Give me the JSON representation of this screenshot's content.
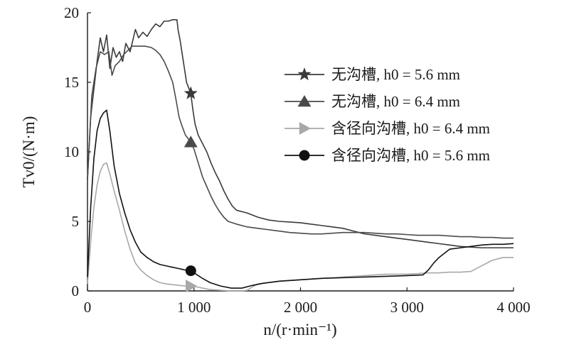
{
  "chart_data": {
    "type": "line",
    "xlabel": "n/(r·min⁻¹)",
    "ylabel": "Tv0/(N·m)",
    "xlim": [
      0,
      4000
    ],
    "ylim": [
      0,
      20
    ],
    "x_ticks": [
      0,
      1000,
      2000,
      3000,
      4000
    ],
    "x_tick_labels": [
      "0",
      "1 000",
      "2 000",
      "3 000",
      "4 000"
    ],
    "y_ticks": [
      0,
      5,
      10,
      15,
      20
    ],
    "y_tick_labels": [
      "0",
      "5",
      "10",
      "15",
      "20"
    ],
    "grid": false,
    "legend_position": "right",
    "series": [
      {
        "name": "无沟槽, h0 = 5.6 mm",
        "color": "#3a3a3a",
        "marker": "star",
        "marker_at": [
          970,
          14.2
        ],
        "points": [
          [
            0,
            8
          ],
          [
            30,
            12.5
          ],
          [
            60,
            14.5
          ],
          [
            90,
            16.5
          ],
          [
            120,
            18.2
          ],
          [
            150,
            17.2
          ],
          [
            180,
            18.4
          ],
          [
            210,
            16
          ],
          [
            240,
            17.5
          ],
          [
            270,
            16.8
          ],
          [
            300,
            17.2
          ],
          [
            330,
            16.5
          ],
          [
            360,
            17.8
          ],
          [
            400,
            17.2
          ],
          [
            450,
            18.8
          ],
          [
            480,
            18.2
          ],
          [
            520,
            18.6
          ],
          [
            560,
            18.3
          ],
          [
            600,
            18.8
          ],
          [
            640,
            19.2
          ],
          [
            680,
            19.0
          ],
          [
            720,
            19.4
          ],
          [
            760,
            19.4
          ],
          [
            800,
            19.5
          ],
          [
            820,
            19.5
          ],
          [
            840,
            19.5
          ],
          [
            850,
            18.8
          ],
          [
            870,
            18.0
          ],
          [
            890,
            17.0
          ],
          [
            910,
            16.0
          ],
          [
            930,
            15.0
          ],
          [
            950,
            14.6
          ],
          [
            970,
            14.2
          ],
          [
            990,
            13.0
          ],
          [
            1010,
            12.0
          ],
          [
            1040,
            11.2
          ],
          [
            1080,
            10.6
          ],
          [
            1120,
            10.0
          ],
          [
            1160,
            9.2
          ],
          [
            1200,
            8.5
          ],
          [
            1240,
            7.9
          ],
          [
            1280,
            7.2
          ],
          [
            1320,
            6.6
          ],
          [
            1360,
            6.1
          ],
          [
            1400,
            5.8
          ],
          [
            1500,
            5.6
          ],
          [
            1600,
            5.3
          ],
          [
            1700,
            5.1
          ],
          [
            1800,
            5.0
          ],
          [
            1900,
            4.95
          ],
          [
            2000,
            4.9
          ],
          [
            2100,
            4.8
          ],
          [
            2200,
            4.7
          ],
          [
            2300,
            4.6
          ],
          [
            2400,
            4.5
          ],
          [
            2500,
            4.3
          ],
          [
            2600,
            4.1
          ],
          [
            2700,
            4.0
          ],
          [
            2800,
            3.9
          ],
          [
            2900,
            3.8
          ],
          [
            3000,
            3.7
          ],
          [
            3100,
            3.6
          ],
          [
            3200,
            3.5
          ],
          [
            3300,
            3.4
          ],
          [
            3400,
            3.3
          ],
          [
            3500,
            3.2
          ],
          [
            3600,
            3.15
          ],
          [
            3700,
            3.1
          ],
          [
            3800,
            3.1
          ],
          [
            3900,
            3.1
          ],
          [
            4000,
            3.1
          ]
        ]
      },
      {
        "name": "无沟槽, h0 = 6.4 mm",
        "color": "#4a4a4a",
        "marker": "triangle",
        "marker_at": [
          970,
          10.7
        ],
        "points": [
          [
            0,
            8
          ],
          [
            40,
            14
          ],
          [
            80,
            16
          ],
          [
            120,
            17.2
          ],
          [
            160,
            17.0
          ],
          [
            200,
            17.2
          ],
          [
            230,
            15.5
          ],
          [
            260,
            16.2
          ],
          [
            300,
            16.5
          ],
          [
            340,
            17.0
          ],
          [
            380,
            17.3
          ],
          [
            420,
            17.6
          ],
          [
            480,
            17.6
          ],
          [
            540,
            17.6
          ],
          [
            600,
            17.5
          ],
          [
            640,
            17.3
          ],
          [
            680,
            17.0
          ],
          [
            720,
            16.5
          ],
          [
            760,
            15.8
          ],
          [
            800,
            15.0
          ],
          [
            830,
            13.8
          ],
          [
            860,
            12.5
          ],
          [
            890,
            11.8
          ],
          [
            920,
            11.2
          ],
          [
            950,
            10.9
          ],
          [
            970,
            10.7
          ],
          [
            1000,
            10.2
          ],
          [
            1040,
            9.2
          ],
          [
            1080,
            8.2
          ],
          [
            1120,
            7.5
          ],
          [
            1160,
            6.8
          ],
          [
            1200,
            6.2
          ],
          [
            1240,
            5.7
          ],
          [
            1280,
            5.3
          ],
          [
            1320,
            5.0
          ],
          [
            1400,
            4.8
          ],
          [
            1500,
            4.6
          ],
          [
            1600,
            4.5
          ],
          [
            1700,
            4.4
          ],
          [
            1800,
            4.3
          ],
          [
            1900,
            4.2
          ],
          [
            2000,
            4.15
          ],
          [
            2100,
            4.1
          ],
          [
            2200,
            4.1
          ],
          [
            2300,
            4.15
          ],
          [
            2400,
            4.2
          ],
          [
            2500,
            4.2
          ],
          [
            2600,
            4.2
          ],
          [
            2700,
            4.15
          ],
          [
            2800,
            4.1
          ],
          [
            2900,
            4.1
          ],
          [
            3000,
            4.05
          ],
          [
            3100,
            4.0
          ],
          [
            3200,
            4.0
          ],
          [
            3300,
            4.0
          ],
          [
            3400,
            3.95
          ],
          [
            3500,
            3.9
          ],
          [
            3600,
            3.9
          ],
          [
            3700,
            3.85
          ],
          [
            3800,
            3.85
          ],
          [
            3900,
            3.8
          ],
          [
            4000,
            3.8
          ]
        ]
      },
      {
        "name": "含径向沟槽, h0 = 6.4 mm",
        "color": "#a8a8a8",
        "marker": "triangle-right",
        "marker_at": [
          970,
          0.35
        ],
        "points": [
          [
            0,
            0.5
          ],
          [
            30,
            3.5
          ],
          [
            60,
            6.0
          ],
          [
            90,
            7.6
          ],
          [
            120,
            8.6
          ],
          [
            150,
            9.1
          ],
          [
            180,
            9.2
          ],
          [
            210,
            8.4
          ],
          [
            250,
            7.2
          ],
          [
            300,
            5.8
          ],
          [
            350,
            4.3
          ],
          [
            400,
            3.0
          ],
          [
            450,
            2.0
          ],
          [
            500,
            1.5
          ],
          [
            560,
            1.1
          ],
          [
            620,
            0.8
          ],
          [
            680,
            0.6
          ],
          [
            740,
            0.5
          ],
          [
            800,
            0.45
          ],
          [
            860,
            0.4
          ],
          [
            920,
            0.35
          ],
          [
            970,
            0.35
          ],
          [
            1020,
            0.3
          ],
          [
            1080,
            0.2
          ],
          [
            1150,
            0.1
          ],
          [
            1250,
            0.05
          ],
          [
            1350,
            0.0
          ],
          [
            1450,
            0.0
          ],
          [
            1500,
            0.05
          ],
          [
            1550,
            0.3
          ],
          [
            1600,
            0.5
          ],
          [
            1700,
            0.6
          ],
          [
            1800,
            0.7
          ],
          [
            1900,
            0.75
          ],
          [
            2000,
            0.8
          ],
          [
            2100,
            0.85
          ],
          [
            2200,
            0.9
          ],
          [
            2300,
            0.95
          ],
          [
            2400,
            1.0
          ],
          [
            2500,
            1.05
          ],
          [
            2600,
            1.1
          ],
          [
            2700,
            1.15
          ],
          [
            2800,
            1.2
          ],
          [
            2900,
            1.2
          ],
          [
            3000,
            1.2
          ],
          [
            3100,
            1.25
          ],
          [
            3200,
            1.3
          ],
          [
            3300,
            1.3
          ],
          [
            3400,
            1.35
          ],
          [
            3500,
            1.35
          ],
          [
            3600,
            1.4
          ],
          [
            3700,
            1.8
          ],
          [
            3800,
            2.2
          ],
          [
            3900,
            2.4
          ],
          [
            4000,
            2.4
          ]
        ]
      },
      {
        "name": "含径向沟槽, h0 = 5.6 mm",
        "color": "#111111",
        "marker": "circle",
        "marker_at": [
          970,
          1.45
        ],
        "points": [
          [
            0,
            1.0
          ],
          [
            30,
            6.0
          ],
          [
            60,
            9.5
          ],
          [
            90,
            11.5
          ],
          [
            120,
            12.4
          ],
          [
            150,
            12.8
          ],
          [
            180,
            13.0
          ],
          [
            210,
            11.5
          ],
          [
            250,
            9.0
          ],
          [
            300,
            7.0
          ],
          [
            350,
            5.6
          ],
          [
            400,
            4.4
          ],
          [
            450,
            3.5
          ],
          [
            500,
            2.8
          ],
          [
            560,
            2.4
          ],
          [
            620,
            2.1
          ],
          [
            680,
            1.9
          ],
          [
            740,
            1.8
          ],
          [
            800,
            1.7
          ],
          [
            860,
            1.6
          ],
          [
            920,
            1.5
          ],
          [
            970,
            1.45
          ],
          [
            1020,
            1.2
          ],
          [
            1080,
            0.9
          ],
          [
            1150,
            0.6
          ],
          [
            1250,
            0.35
          ],
          [
            1350,
            0.2
          ],
          [
            1450,
            0.2
          ],
          [
            1550,
            0.4
          ],
          [
            1650,
            0.55
          ],
          [
            1800,
            0.7
          ],
          [
            2000,
            0.8
          ],
          [
            2200,
            0.9
          ],
          [
            2400,
            0.95
          ],
          [
            2600,
            1.0
          ],
          [
            2800,
            1.05
          ],
          [
            3000,
            1.1
          ],
          [
            3150,
            1.15
          ],
          [
            3200,
            1.5
          ],
          [
            3250,
            2.0
          ],
          [
            3300,
            2.4
          ],
          [
            3400,
            3.0
          ],
          [
            3500,
            3.1
          ],
          [
            3600,
            3.2
          ],
          [
            3700,
            3.3
          ],
          [
            3800,
            3.35
          ],
          [
            3900,
            3.35
          ],
          [
            4000,
            3.4
          ]
        ]
      }
    ]
  }
}
